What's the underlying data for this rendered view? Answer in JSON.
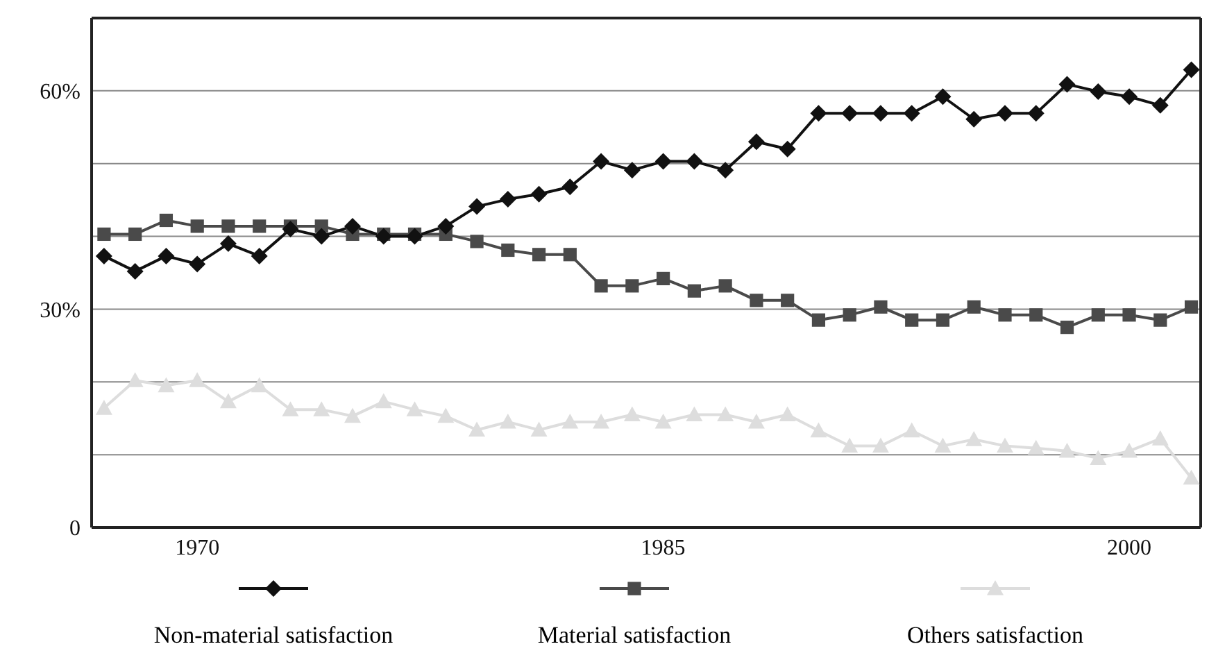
{
  "chart_data": {
    "type": "line",
    "x": [
      1967,
      1968,
      1969,
      1970,
      1971,
      1972,
      1973,
      1974,
      1975,
      1976,
      1977,
      1978,
      1979,
      1980,
      1981,
      1982,
      1983,
      1984,
      1985,
      1986,
      1987,
      1988,
      1989,
      1990,
      1991,
      1992,
      1993,
      1994,
      1995,
      1996,
      1997,
      1998,
      1999,
      2000,
      2001,
      2002
    ],
    "series": [
      {
        "name": "Non-material satisfaction",
        "color": "#111111",
        "marker": "diamond",
        "values": [
          37.3,
          35.2,
          37.3,
          36.2,
          39,
          37.3,
          41,
          40,
          41.4,
          40,
          40,
          41.4,
          44.1,
          45.1,
          45.8,
          46.8,
          50.3,
          49.1,
          50.3,
          50.3,
          49.1,
          53,
          52,
          56.9,
          56.9,
          56.9,
          56.9,
          59.2,
          56.1,
          56.9,
          56.9,
          60.9,
          59.9,
          59.2,
          58,
          62.9
        ]
      },
      {
        "name": "Material satisfaction",
        "color": "#4a4a4a",
        "marker": "square",
        "values": [
          40.3,
          40.3,
          42.2,
          41.4,
          41.4,
          41.4,
          41.4,
          41.4,
          40.3,
          40.3,
          40.3,
          40.3,
          39.3,
          38.1,
          37.5,
          37.5,
          33.2,
          33.2,
          34.2,
          32.5,
          33.2,
          31.2,
          31.2,
          28.5,
          29.2,
          30.3,
          28.5,
          28.5,
          30.3,
          29.2,
          29.2,
          27.5,
          29.2,
          29.2,
          28.5,
          30.3
        ]
      },
      {
        "name": "Others satisfaction",
        "color": "#dddddd",
        "marker": "triangle",
        "values": [
          16.4,
          20.2,
          19.5,
          20.2,
          17.3,
          19.5,
          16.2,
          16.2,
          15.3,
          17.3,
          16.2,
          15.3,
          13.4,
          14.5,
          13.4,
          14.5,
          14.5,
          15.5,
          14.5,
          15.5,
          15.5,
          14.5,
          15.5,
          13.3,
          11.2,
          11.2,
          13.3,
          11.2,
          12.1,
          11.2,
          10.9,
          10.5,
          9.5,
          10.5,
          12.2,
          6.8
        ]
      }
    ],
    "xlim": [
      1966.6,
      2002.3
    ],
    "xticks": [
      1970,
      1985,
      2000
    ],
    "ylim": [
      0,
      70
    ],
    "yticks": [
      0,
      {
        "value": 10,
        "label": null
      },
      {
        "value": 20,
        "label": null
      },
      {
        "value": 30,
        "label": "30%"
      },
      {
        "value": 40,
        "label": null
      },
      {
        "value": 50,
        "label": null
      },
      {
        "value": 60,
        "label": "60%"
      }
    ],
    "grid": "y",
    "legend": "bottom",
    "line_style": "solid"
  }
}
